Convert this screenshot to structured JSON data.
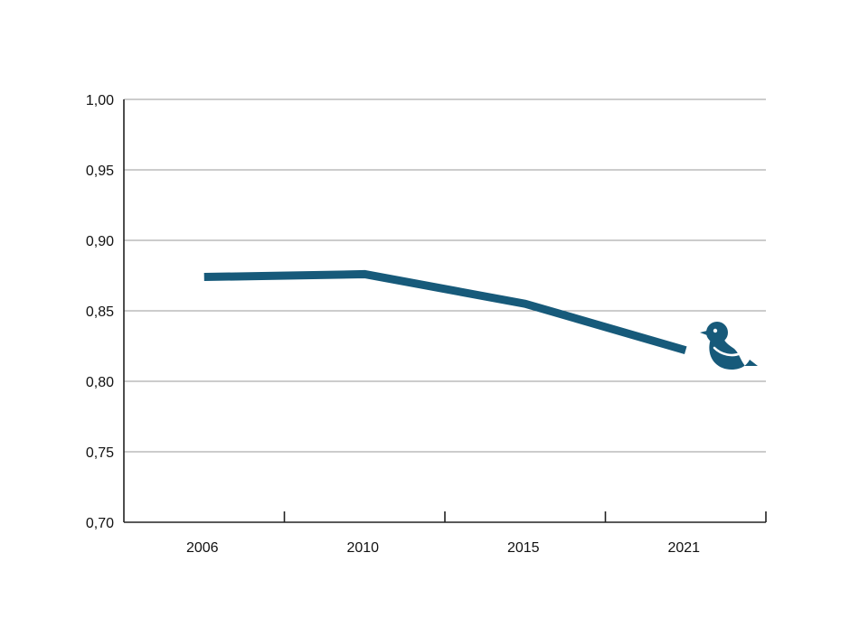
{
  "chart_data": {
    "type": "line",
    "categories": [
      "2006",
      "2010",
      "2015",
      "2021"
    ],
    "series": [
      {
        "values": [
          0.874,
          0.876,
          0.855,
          0.822
        ],
        "color": "#175a7a"
      }
    ],
    "y_ticks": [
      "0,70",
      "0,75",
      "0,80",
      "0,85",
      "0,90",
      "0,95",
      "1,00"
    ],
    "ylim": [
      0.7,
      1.0
    ],
    "grid": true,
    "end_marker_icon": "bird-icon",
    "line_color": "#175a7a"
  }
}
